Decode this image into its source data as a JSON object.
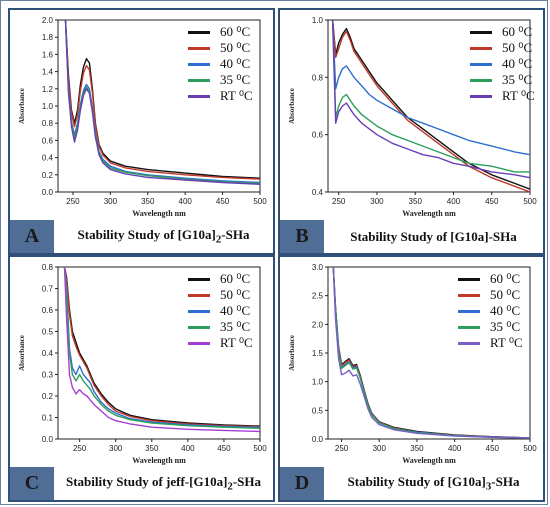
{
  "chart_data": [
    {
      "panel": "A",
      "type": "line",
      "caption_prefix": "Stability Study of [G10a]",
      "caption_sub": "2",
      "caption_suffix": "-SHa",
      "xlabel": "Wavelength nm",
      "ylabel": "Absorbance",
      "xlim": [
        230,
        500
      ],
      "ylim": [
        0,
        2.0
      ],
      "xticks": [
        "250",
        "300",
        "350",
        "400",
        "450",
        "500"
      ],
      "yticks": [
        "0.0",
        "0.2",
        "0.4",
        "0.6",
        "0.8",
        "1.0",
        "1.2",
        "1.4",
        "1.6",
        "1.8",
        "2.0"
      ],
      "series": [
        {
          "name": "60 ⁰C",
          "color": "#111111",
          "x": [
            240,
            244,
            248,
            252,
            256,
            260,
            264,
            268,
            272,
            276,
            280,
            285,
            290,
            300,
            320,
            350,
            400,
            450,
            500
          ],
          "y": [
            2.0,
            1.35,
            0.95,
            0.8,
            0.95,
            1.25,
            1.45,
            1.55,
            1.5,
            1.2,
            0.8,
            0.55,
            0.45,
            0.36,
            0.3,
            0.26,
            0.22,
            0.18,
            0.16
          ]
        },
        {
          "name": "50 ⁰C",
          "color": "#c0392b",
          "x": [
            240,
            244,
            248,
            252,
            256,
            260,
            264,
            268,
            272,
            276,
            280,
            285,
            290,
            300,
            320,
            350,
            400,
            450,
            500
          ],
          "y": [
            2.0,
            1.3,
            0.92,
            0.76,
            0.9,
            1.18,
            1.38,
            1.47,
            1.42,
            1.15,
            0.78,
            0.53,
            0.43,
            0.34,
            0.28,
            0.24,
            0.2,
            0.17,
            0.15
          ]
        },
        {
          "name": "40 ⁰C",
          "color": "#2e6fd1",
          "x": [
            240,
            244,
            248,
            252,
            256,
            260,
            264,
            268,
            272,
            276,
            280,
            285,
            290,
            300,
            320,
            350,
            400,
            450,
            500
          ],
          "y": [
            2.0,
            1.2,
            0.82,
            0.66,
            0.8,
            1.02,
            1.18,
            1.25,
            1.2,
            0.98,
            0.68,
            0.47,
            0.38,
            0.3,
            0.24,
            0.2,
            0.16,
            0.13,
            0.11
          ]
        },
        {
          "name": "35 ⁰C",
          "color": "#2e9e5b",
          "x": [
            240,
            244,
            248,
            252,
            256,
            260,
            264,
            268,
            272,
            276,
            280,
            285,
            290,
            300,
            320,
            350,
            400,
            450,
            500
          ],
          "y": [
            2.0,
            1.18,
            0.8,
            0.63,
            0.77,
            0.99,
            1.15,
            1.22,
            1.17,
            0.95,
            0.66,
            0.45,
            0.36,
            0.28,
            0.23,
            0.19,
            0.15,
            0.12,
            0.1
          ]
        },
        {
          "name": "RT ⁰C",
          "color": "#6a3fb5",
          "x": [
            240,
            244,
            248,
            252,
            256,
            260,
            264,
            268,
            272,
            276,
            280,
            285,
            290,
            300,
            320,
            350,
            400,
            450,
            500
          ],
          "y": [
            2.0,
            1.15,
            0.76,
            0.58,
            0.72,
            0.95,
            1.12,
            1.2,
            1.15,
            0.93,
            0.64,
            0.43,
            0.34,
            0.26,
            0.21,
            0.17,
            0.14,
            0.11,
            0.09
          ]
        }
      ]
    },
    {
      "panel": "B",
      "type": "line",
      "caption_prefix": "Stability Study of [G10a]-SHa",
      "caption_sub": "",
      "caption_suffix": "",
      "xlabel": "Wavelength nm",
      "ylabel": "Absorbance",
      "xlim": [
        236,
        500
      ],
      "ylim": [
        0.4,
        1.0
      ],
      "xticks": [
        "250",
        "300",
        "350",
        "400",
        "450",
        "500"
      ],
      "yticks": [
        "0.4",
        "0.6",
        "0.8",
        "1.0"
      ],
      "series": [
        {
          "name": "60 ⁰C",
          "color": "#111111",
          "x": [
            242,
            246,
            250,
            255,
            260,
            265,
            270,
            280,
            290,
            300,
            320,
            340,
            360,
            380,
            400,
            420,
            450,
            480,
            500
          ],
          "y": [
            1.0,
            0.88,
            0.92,
            0.95,
            0.97,
            0.94,
            0.9,
            0.86,
            0.82,
            0.78,
            0.72,
            0.66,
            0.62,
            0.58,
            0.54,
            0.5,
            0.46,
            0.43,
            0.41
          ]
        },
        {
          "name": "50 ⁰C",
          "color": "#c0392b",
          "x": [
            242,
            246,
            250,
            255,
            260,
            265,
            270,
            280,
            290,
            300,
            320,
            340,
            360,
            380,
            400,
            420,
            450,
            480,
            500
          ],
          "y": [
            1.0,
            0.87,
            0.9,
            0.94,
            0.96,
            0.93,
            0.89,
            0.85,
            0.81,
            0.77,
            0.71,
            0.65,
            0.61,
            0.57,
            0.53,
            0.49,
            0.45,
            0.42,
            0.4
          ]
        },
        {
          "name": "40 ⁰C",
          "color": "#2e6fd1",
          "x": [
            242,
            246,
            250,
            255,
            260,
            265,
            270,
            280,
            290,
            300,
            320,
            340,
            360,
            380,
            400,
            420,
            450,
            480,
            500
          ],
          "y": [
            1.0,
            0.76,
            0.8,
            0.83,
            0.84,
            0.82,
            0.8,
            0.77,
            0.74,
            0.72,
            0.69,
            0.66,
            0.64,
            0.62,
            0.6,
            0.58,
            0.56,
            0.54,
            0.53
          ]
        },
        {
          "name": "35 ⁰C",
          "color": "#2e9e5b",
          "x": [
            242,
            246,
            250,
            255,
            260,
            265,
            270,
            280,
            290,
            300,
            320,
            340,
            360,
            380,
            400,
            420,
            450,
            480,
            500
          ],
          "y": [
            1.0,
            0.66,
            0.7,
            0.73,
            0.74,
            0.72,
            0.7,
            0.67,
            0.65,
            0.63,
            0.6,
            0.58,
            0.56,
            0.54,
            0.52,
            0.5,
            0.49,
            0.47,
            0.47
          ]
        },
        {
          "name": "RT ⁰C",
          "color": "#6a3fb5",
          "x": [
            242,
            246,
            250,
            255,
            260,
            265,
            270,
            280,
            290,
            300,
            320,
            340,
            360,
            380,
            400,
            420,
            450,
            480,
            500
          ],
          "y": [
            1.0,
            0.64,
            0.68,
            0.7,
            0.71,
            0.69,
            0.67,
            0.64,
            0.62,
            0.6,
            0.57,
            0.55,
            0.53,
            0.52,
            0.5,
            0.49,
            0.47,
            0.46,
            0.45
          ]
        }
      ]
    },
    {
      "panel": "C",
      "type": "line",
      "caption_prefix": "Stability Study of jeff-[G10a]",
      "caption_sub": "2",
      "caption_suffix": "-SHa",
      "xlabel": "Wavelength nm",
      "ylabel": "Absorbance",
      "xlim": [
        220,
        500
      ],
      "ylim": [
        0,
        0.8
      ],
      "xticks": [
        "250",
        "300",
        "350",
        "400",
        "450",
        "500"
      ],
      "yticks": [
        "0.0",
        "0.1",
        "0.2",
        "0.3",
        "0.4",
        "0.5",
        "0.6",
        "0.7",
        "0.8"
      ],
      "series": [
        {
          "name": "60 ⁰C",
          "color": "#111111",
          "x": [
            229,
            232,
            236,
            240,
            245,
            250,
            255,
            260,
            265,
            270,
            280,
            290,
            300,
            320,
            350,
            400,
            450,
            500
          ],
          "y": [
            0.8,
            0.75,
            0.6,
            0.5,
            0.45,
            0.4,
            0.37,
            0.34,
            0.3,
            0.26,
            0.21,
            0.17,
            0.14,
            0.11,
            0.09,
            0.075,
            0.065,
            0.06
          ]
        },
        {
          "name": "50 ⁰C",
          "color": "#c0392b",
          "x": [
            229,
            232,
            236,
            240,
            245,
            250,
            255,
            260,
            265,
            270,
            280,
            290,
            300,
            320,
            350,
            400,
            450,
            500
          ],
          "y": [
            0.8,
            0.74,
            0.58,
            0.48,
            0.43,
            0.39,
            0.36,
            0.33,
            0.29,
            0.25,
            0.2,
            0.16,
            0.13,
            0.105,
            0.085,
            0.07,
            0.062,
            0.057
          ]
        },
        {
          "name": "40 ⁰C",
          "color": "#2e6fd1",
          "x": [
            229,
            232,
            236,
            240,
            245,
            250,
            255,
            260,
            265,
            270,
            280,
            290,
            300,
            320,
            350,
            400,
            450,
            500
          ],
          "y": [
            0.8,
            0.7,
            0.42,
            0.33,
            0.3,
            0.34,
            0.3,
            0.28,
            0.26,
            0.22,
            0.17,
            0.14,
            0.12,
            0.095,
            0.078,
            0.066,
            0.058,
            0.054
          ]
        },
        {
          "name": "35 ⁰C",
          "color": "#2e9e5b",
          "x": [
            229,
            232,
            236,
            240,
            245,
            250,
            255,
            260,
            265,
            270,
            280,
            290,
            300,
            320,
            350,
            400,
            450,
            500
          ],
          "y": [
            0.8,
            0.68,
            0.4,
            0.3,
            0.27,
            0.3,
            0.27,
            0.25,
            0.23,
            0.2,
            0.16,
            0.13,
            0.11,
            0.09,
            0.074,
            0.062,
            0.055,
            0.05
          ]
        },
        {
          "name": "RT ⁰C",
          "color": "#a43fd6",
          "x": [
            229,
            232,
            236,
            240,
            245,
            250,
            255,
            260,
            265,
            270,
            280,
            290,
            300,
            320,
            350,
            400,
            450,
            500
          ],
          "y": [
            0.8,
            0.55,
            0.3,
            0.24,
            0.21,
            0.23,
            0.21,
            0.2,
            0.18,
            0.16,
            0.13,
            0.1,
            0.085,
            0.07,
            0.055,
            0.045,
            0.04,
            0.035
          ]
        }
      ]
    },
    {
      "panel": "D",
      "type": "line",
      "caption_prefix": "Stability Study of [G10a]",
      "caption_sub": "3",
      "caption_suffix": "-SHa",
      "xlabel": "Wavelength nm",
      "ylabel": "Absorbance",
      "xlim": [
        232,
        500
      ],
      "ylim": [
        0,
        3.0
      ],
      "xticks": [
        "250",
        "300",
        "350",
        "400",
        "450",
        "500"
      ],
      "yticks": [
        "0.0",
        "0.5",
        "1.0",
        "1.5",
        "2.0",
        "2.5",
        "3.0"
      ],
      "series": [
        {
          "name": "60 ⁰C",
          "color": "#111111",
          "x": [
            239,
            242,
            246,
            250,
            255,
            260,
            265,
            270,
            275,
            280,
            285,
            290,
            300,
            320,
            350,
            400,
            450,
            500
          ],
          "y": [
            3.0,
            2.3,
            1.6,
            1.3,
            1.35,
            1.4,
            1.28,
            1.3,
            1.1,
            0.85,
            0.62,
            0.45,
            0.3,
            0.2,
            0.13,
            0.07,
            0.04,
            0.02
          ]
        },
        {
          "name": "50 ⁰C",
          "color": "#c0392b",
          "x": [
            239,
            242,
            246,
            250,
            255,
            260,
            265,
            270,
            275,
            280,
            285,
            290,
            300,
            320,
            350,
            400,
            450,
            500
          ],
          "y": [
            3.0,
            2.28,
            1.58,
            1.28,
            1.33,
            1.38,
            1.26,
            1.28,
            1.08,
            0.83,
            0.6,
            0.44,
            0.29,
            0.19,
            0.12,
            0.065,
            0.035,
            0.02
          ]
        },
        {
          "name": "40 ⁰C",
          "color": "#2e6fd1",
          "x": [
            239,
            242,
            246,
            250,
            255,
            260,
            265,
            270,
            275,
            280,
            285,
            290,
            300,
            320,
            350,
            400,
            450,
            500
          ],
          "y": [
            3.0,
            2.25,
            1.55,
            1.25,
            1.3,
            1.35,
            1.24,
            1.26,
            1.06,
            0.82,
            0.59,
            0.43,
            0.28,
            0.18,
            0.12,
            0.06,
            0.035,
            0.02
          ]
        },
        {
          "name": "35 ⁰C",
          "color": "#2e9e5b",
          "x": [
            239,
            242,
            246,
            250,
            255,
            260,
            265,
            270,
            275,
            280,
            285,
            290,
            300,
            320,
            350,
            400,
            450,
            500
          ],
          "y": [
            3.0,
            2.22,
            1.52,
            1.23,
            1.28,
            1.33,
            1.22,
            1.24,
            1.05,
            0.81,
            0.58,
            0.42,
            0.28,
            0.18,
            0.11,
            0.06,
            0.03,
            0.02
          ]
        },
        {
          "name": "RT ⁰C",
          "color": "#7a5fc7",
          "x": [
            239,
            242,
            246,
            250,
            255,
            260,
            265,
            270,
            275,
            280,
            285,
            290,
            300,
            320,
            350,
            400,
            450,
            500
          ],
          "y": [
            3.0,
            2.1,
            1.4,
            1.12,
            1.15,
            1.2,
            1.1,
            1.12,
            0.95,
            0.74,
            0.53,
            0.38,
            0.25,
            0.16,
            0.1,
            0.05,
            0.03,
            0.015
          ]
        }
      ]
    }
  ]
}
